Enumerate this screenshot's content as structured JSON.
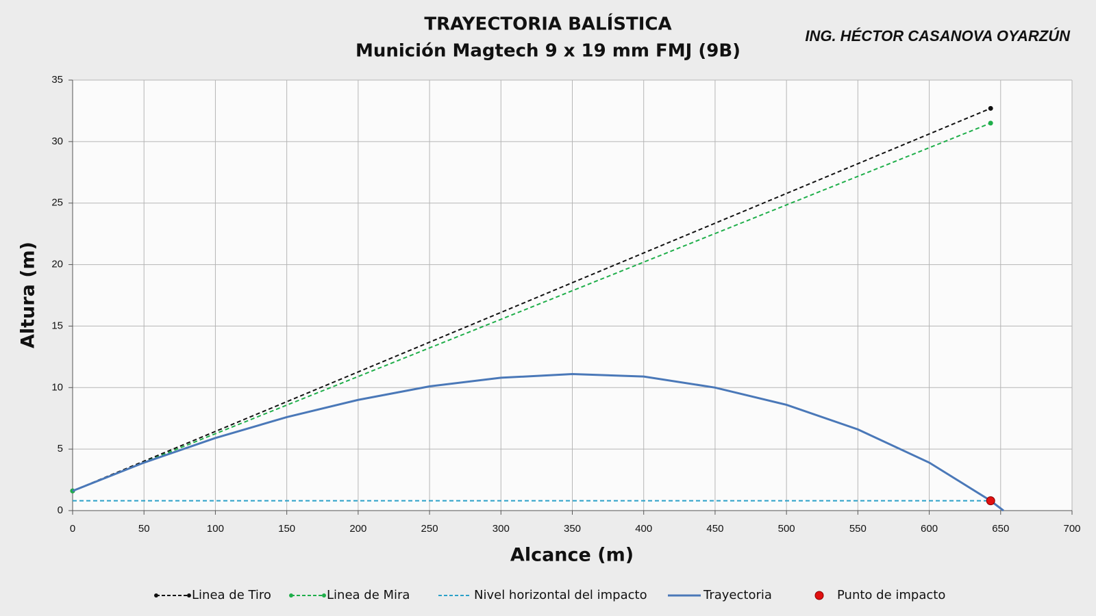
{
  "chart_data": {
    "type": "line",
    "title": "TRAYECTORIA BALÍSTICA",
    "subtitle": "Munición Magtech 9 x 19 mm FMJ (9B)",
    "author": "ING. HÉCTOR CASANOVA OYARZÚN",
    "x_label": "Alcance (m)",
    "y_label": "Altura (m)",
    "xlim": [
      0,
      700
    ],
    "xticks": [
      0,
      50,
      100,
      150,
      200,
      250,
      300,
      350,
      400,
      450,
      500,
      550,
      600,
      650,
      700
    ],
    "ylim": [
      0,
      35
    ],
    "yticks": [
      0,
      5,
      10,
      15,
      20,
      25,
      30,
      35
    ],
    "grid": true,
    "legend": "bottom",
    "series": [
      {
        "name": "Linea de Tiro",
        "color": "#111111",
        "dash": "dashed",
        "markers": true,
        "x": [
          0,
          643
        ],
        "values": [
          1.6,
          32.7
        ]
      },
      {
        "name": "Linea de Mira",
        "color": "#1fae4a",
        "dash": "dashed",
        "markers": true,
        "x": [
          0,
          643
        ],
        "values": [
          1.6,
          31.5
        ]
      },
      {
        "name": "Nivel horizontal del impacto",
        "color": "#2aa0c8",
        "dash": "dashed",
        "markers": false,
        "x": [
          0,
          643
        ],
        "values": [
          0.8,
          0.8
        ]
      },
      {
        "name": "Trayectoria",
        "color": "#4a78b8",
        "dash": "solid",
        "markers": false,
        "x": [
          0,
          50,
          100,
          150,
          200,
          250,
          300,
          350,
          400,
          450,
          500,
          550,
          600,
          643,
          652
        ],
        "values": [
          1.6,
          3.9,
          5.9,
          7.6,
          9.0,
          10.1,
          10.8,
          11.1,
          10.9,
          10.0,
          8.6,
          6.6,
          3.9,
          0.8,
          0
        ]
      },
      {
        "name": "Punto de impacto",
        "color": "#e01010",
        "dash": "none",
        "markers": true,
        "x": [
          643
        ],
        "values": [
          0.8
        ]
      }
    ]
  }
}
